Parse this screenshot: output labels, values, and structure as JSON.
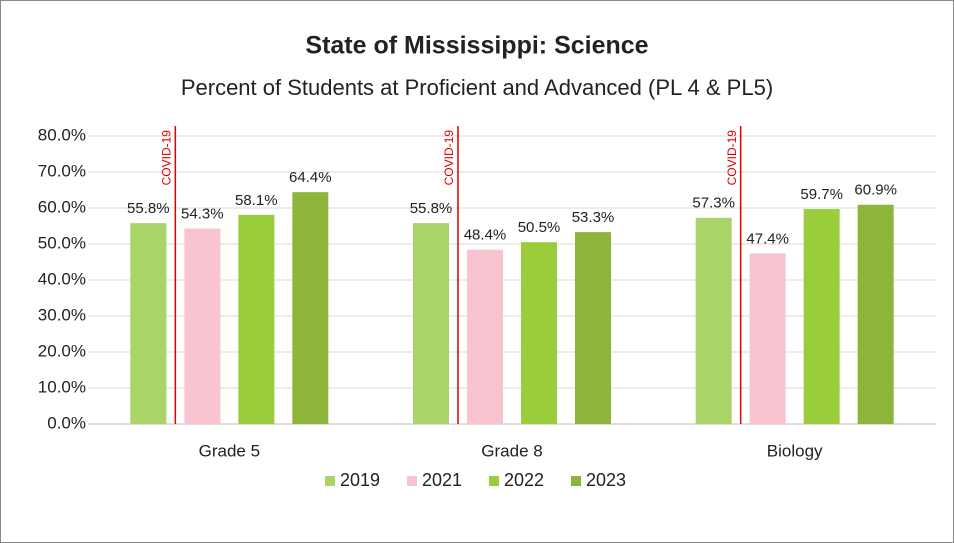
{
  "chart_data": {
    "type": "bar",
    "title": "State of Mississippi: Science",
    "subtitle": "Percent of Students at Proficient and Advanced (PL 4 & PL5)",
    "categories": [
      "Grade 5",
      "Grade 8",
      "Biology"
    ],
    "series": [
      {
        "name": "2019",
        "color": "#a9d468",
        "values": [
          55.8,
          55.8,
          57.3
        ],
        "value_labels": [
          "55.8%",
          "55.8%",
          "57.3%"
        ]
      },
      {
        "name": "2021",
        "color": "#f8c4cf",
        "values": [
          54.3,
          48.4,
          47.4
        ],
        "value_labels": [
          "54.3%",
          "48.4%",
          "47.4%"
        ]
      },
      {
        "name": "2022",
        "color": "#9acd3c",
        "values": [
          58.1,
          50.5,
          59.7
        ],
        "value_labels": [
          "58.1%",
          "50.5%",
          "59.7%"
        ]
      },
      {
        "name": "2023",
        "color": "#8db53b",
        "values": [
          64.4,
          53.3,
          60.9
        ],
        "value_labels": [
          "64.4%",
          "53.3%",
          "60.9%"
        ]
      }
    ],
    "annotations": [
      "COVID-19",
      "COVID-19",
      "COVID-19"
    ],
    "annotation_color": "#e00000",
    "ylim": [
      0,
      80
    ],
    "yticks": [
      {
        "value": 0,
        "label": "0.0%"
      },
      {
        "value": 10,
        "label": "10.0%"
      },
      {
        "value": 20,
        "label": "20.0%"
      },
      {
        "value": 30,
        "label": "30.0%"
      },
      {
        "value": 40,
        "label": "40.0%"
      },
      {
        "value": 50,
        "label": "50.0%"
      },
      {
        "value": 60,
        "label": "60.0%"
      },
      {
        "value": 70,
        "label": "70.0%"
      },
      {
        "value": 80,
        "label": "80.0%"
      }
    ],
    "grid": true,
    "legend": "bottom"
  }
}
